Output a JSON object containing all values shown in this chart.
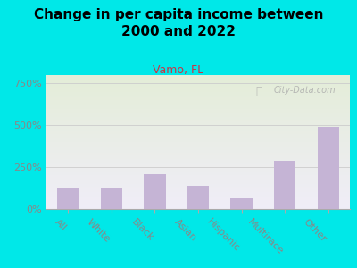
{
  "title": "Change in per capita income between\n2000 and 2022",
  "subtitle": "Vamo, FL",
  "categories": [
    "All",
    "White",
    "Black",
    "Asian",
    "Hispanic",
    "Multirace",
    "Other"
  ],
  "values": [
    125,
    130,
    210,
    140,
    65,
    290,
    490
  ],
  "bar_color": "#c5b4d5",
  "title_fontsize": 11,
  "subtitle_fontsize": 9,
  "subtitle_color": "#cc3344",
  "title_color": "#000000",
  "background_outer": "#00e8e8",
  "background_inner_top": "#e4edd8",
  "background_inner_bottom": "#f0eef8",
  "yticks": [
    0,
    250,
    500,
    750
  ],
  "ylim": [
    0,
    800
  ],
  "watermark": "City-Data.com",
  "xlabel_rotation": -45,
  "grid_color": "#cccccc",
  "axis_color": "#aaaaaa",
  "tick_color": "#888888",
  "tick_fontsize": 8,
  "xtick_fontsize": 8
}
